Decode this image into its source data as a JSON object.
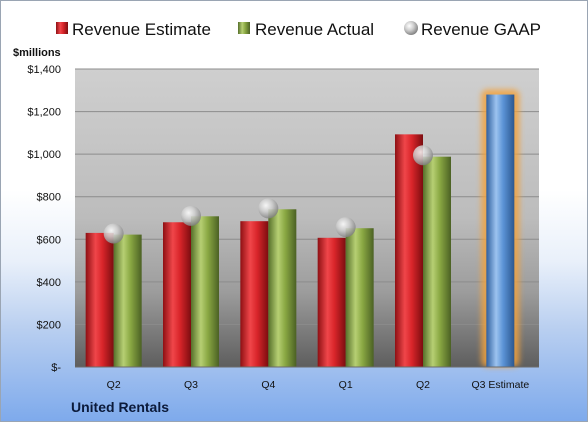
{
  "chart_data": {
    "type": "bar",
    "categories": [
      "Q2",
      "Q3",
      "Q4",
      "Q1",
      "Q2",
      "Q3 Estimate"
    ],
    "series": [
      {
        "name": "Revenue Estimate",
        "values": [
          630,
          680,
          685,
          607,
          1093,
          null
        ],
        "color": "#d9252a"
      },
      {
        "name": "Revenue Actual",
        "values": [
          622,
          708,
          741,
          652,
          988,
          null
        ],
        "color": "#8aa843"
      },
      {
        "name": "Revenue GAAP",
        "values": [
          627,
          710,
          745,
          657,
          995,
          null
        ],
        "marker": "sphere",
        "color": "#b8b8b8"
      }
    ],
    "forecast": {
      "category": "Q3 Estimate",
      "value": 1280,
      "color": "#5b93d6",
      "highlight": "#f3a33c"
    },
    "ylabel": "$millions",
    "ylim": [
      0,
      1400
    ],
    "yticks": [
      0,
      200,
      400,
      600,
      800,
      1000,
      1200,
      1400
    ],
    "ytick_labels": [
      "$-",
      "$200",
      "$400",
      "$600",
      "$800",
      "$1,000",
      "$1,200",
      "$1,400"
    ],
    "grid": true,
    "legend_position": "top",
    "company": "United Rentals"
  }
}
